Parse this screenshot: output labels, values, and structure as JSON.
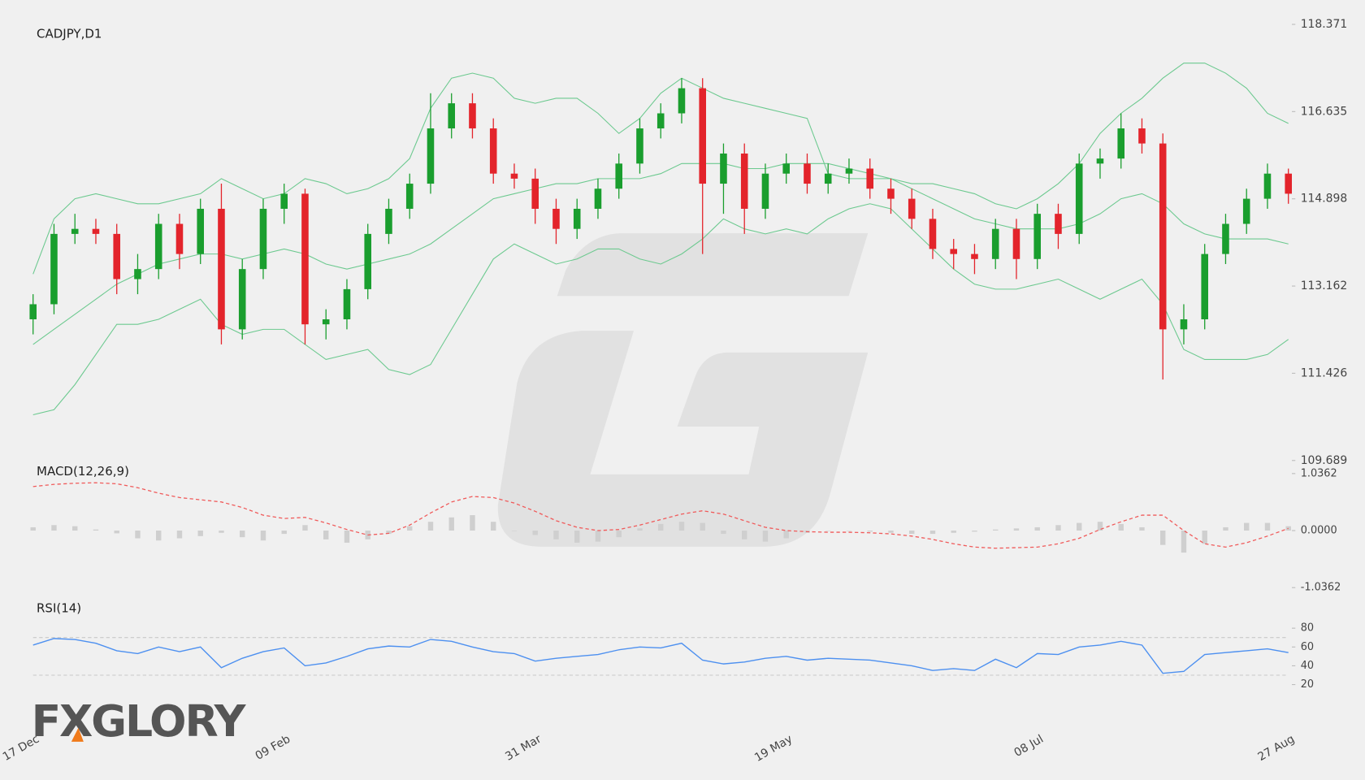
{
  "logo": "FXGLORY",
  "chart_data": [
    {
      "type": "candlestick",
      "title": "CADJPY,D1",
      "categories": [
        "17 Dec",
        null,
        null,
        null,
        null,
        null,
        null,
        null,
        null,
        null,
        null,
        null,
        "09 Feb",
        null,
        null,
        null,
        null,
        null,
        null,
        null,
        null,
        null,
        null,
        null,
        "31 Mar",
        null,
        null,
        null,
        null,
        null,
        null,
        null,
        null,
        null,
        null,
        null,
        "19 May",
        null,
        null,
        null,
        null,
        null,
        null,
        null,
        null,
        null,
        null,
        null,
        "08 Jul",
        null,
        null,
        null,
        null,
        null,
        null,
        null,
        null,
        null,
        null,
        null,
        "27 Aug"
      ],
      "open": [
        112.5,
        112.8,
        114.2,
        114.3,
        114.2,
        113.3,
        113.5,
        114.4,
        113.8,
        114.7,
        112.3,
        113.5,
        114.7,
        115.0,
        112.4,
        112.5,
        113.1,
        114.2,
        114.7,
        115.2,
        116.3,
        116.8,
        116.3,
        115.4,
        115.3,
        114.7,
        114.3,
        114.7,
        115.1,
        115.6,
        116.3,
        116.6,
        117.1,
        115.2,
        115.8,
        114.7,
        115.4,
        115.6,
        115.2,
        115.4,
        115.5,
        115.1,
        114.9,
        114.5,
        113.9,
        113.8,
        113.7,
        114.3,
        113.7,
        114.6,
        114.2,
        115.6,
        115.7,
        116.3,
        116.0,
        112.3,
        112.5,
        113.8,
        114.4,
        114.9,
        115.4
      ],
      "high": [
        113.0,
        114.4,
        114.6,
        114.5,
        114.4,
        113.8,
        114.6,
        114.6,
        114.9,
        115.2,
        113.7,
        114.9,
        115.2,
        115.1,
        112.7,
        113.3,
        114.4,
        114.9,
        115.4,
        117.0,
        117.0,
        117.0,
        116.5,
        115.6,
        115.5,
        114.9,
        114.9,
        115.3,
        115.8,
        116.5,
        116.8,
        117.3,
        117.3,
        116.0,
        116.0,
        115.6,
        115.8,
        115.8,
        115.6,
        115.7,
        115.7,
        115.3,
        115.1,
        114.7,
        114.1,
        114.0,
        114.5,
        114.5,
        114.8,
        114.8,
        115.8,
        115.9,
        116.6,
        116.5,
        116.2,
        112.8,
        114.0,
        114.6,
        115.1,
        115.6,
        115.5
      ],
      "low": [
        112.2,
        112.6,
        114.0,
        114.0,
        113.0,
        113.0,
        113.3,
        113.5,
        113.6,
        112.0,
        112.1,
        113.3,
        114.4,
        112.0,
        112.1,
        112.3,
        112.9,
        114.0,
        114.5,
        115.0,
        116.1,
        116.1,
        115.2,
        115.1,
        114.4,
        114.0,
        114.1,
        114.5,
        114.9,
        115.4,
        116.1,
        116.4,
        113.8,
        114.6,
        114.2,
        114.5,
        115.2,
        115.0,
        115.0,
        115.2,
        114.9,
        114.6,
        114.3,
        113.7,
        113.5,
        113.4,
        113.5,
        113.3,
        113.5,
        113.9,
        114.0,
        115.3,
        115.5,
        115.8,
        111.3,
        112.0,
        112.3,
        113.6,
        114.2,
        114.7,
        114.8
      ],
      "close": [
        112.8,
        114.2,
        114.3,
        114.2,
        113.3,
        113.5,
        114.4,
        113.8,
        114.7,
        112.3,
        113.5,
        114.7,
        115.0,
        112.4,
        112.5,
        113.1,
        114.2,
        114.7,
        115.2,
        116.3,
        116.8,
        116.3,
        115.4,
        115.3,
        114.7,
        114.3,
        114.7,
        115.1,
        115.6,
        116.3,
        116.6,
        117.1,
        115.2,
        115.8,
        114.7,
        115.4,
        115.6,
        115.2,
        115.4,
        115.5,
        115.1,
        114.9,
        114.5,
        113.9,
        113.8,
        113.7,
        114.3,
        113.7,
        114.6,
        114.2,
        115.6,
        115.7,
        116.3,
        116.0,
        112.3,
        112.5,
        113.8,
        114.4,
        114.9,
        115.4,
        115.0
      ],
      "up_color": "#1a9e2e",
      "down_color": "#e3242b",
      "overlays": [
        {
          "color": "#6cc98f",
          "values": [
            113.4,
            114.5,
            114.9,
            115.0,
            114.9,
            114.8,
            114.8,
            114.9,
            115.0,
            115.3,
            115.1,
            114.9,
            115.0,
            115.3,
            115.2,
            115.0,
            115.1,
            115.3,
            115.7,
            116.7,
            117.3,
            117.4,
            117.3,
            116.9,
            116.8,
            116.9,
            116.9,
            116.6,
            116.2,
            116.5,
            117.0,
            117.3,
            117.1,
            116.9,
            116.8,
            116.7,
            116.6,
            116.5,
            115.4,
            115.3,
            115.3,
            115.3,
            115.2,
            115.2,
            115.1,
            115.0,
            114.8,
            114.7,
            114.9,
            115.2,
            115.6,
            116.2,
            116.6,
            116.9,
            117.3,
            117.6,
            117.6,
            117.4,
            117.1,
            116.6,
            116.4
          ]
        },
        {
          "color": "#6cc98f",
          "values": [
            112.0,
            112.3,
            112.6,
            112.9,
            113.2,
            113.4,
            113.6,
            113.7,
            113.8,
            113.8,
            113.7,
            113.8,
            113.9,
            113.8,
            113.6,
            113.5,
            113.6,
            113.7,
            113.8,
            114.0,
            114.3,
            114.6,
            114.9,
            115.0,
            115.1,
            115.2,
            115.2,
            115.3,
            115.3,
            115.3,
            115.4,
            115.6,
            115.6,
            115.6,
            115.5,
            115.5,
            115.6,
            115.6,
            115.6,
            115.5,
            115.4,
            115.3,
            115.1,
            114.9,
            114.7,
            114.5,
            114.4,
            114.3,
            114.3,
            114.3,
            114.4,
            114.6,
            114.9,
            115.0,
            114.8,
            114.4,
            114.2,
            114.1,
            114.1,
            114.1,
            114.0
          ]
        },
        {
          "color": "#6cc98f",
          "values": [
            110.6,
            110.7,
            111.2,
            111.8,
            112.4,
            112.4,
            112.5,
            112.7,
            112.9,
            112.4,
            112.2,
            112.3,
            112.3,
            112.0,
            111.7,
            111.8,
            111.9,
            111.5,
            111.4,
            111.6,
            112.3,
            113.0,
            113.7,
            114.0,
            113.8,
            113.6,
            113.7,
            113.9,
            113.9,
            113.7,
            113.6,
            113.8,
            114.1,
            114.5,
            114.3,
            114.2,
            114.3,
            114.2,
            114.5,
            114.7,
            114.8,
            114.7,
            114.3,
            113.9,
            113.5,
            113.2,
            113.1,
            113.1,
            113.2,
            113.3,
            113.1,
            112.9,
            113.1,
            113.3,
            112.8,
            111.9,
            111.7,
            111.7,
            111.7,
            111.8,
            112.1
          ]
        }
      ],
      "ylim": [
        109.689,
        118.371
      ],
      "yticks": [
        109.689,
        111.426,
        113.162,
        114.898,
        116.635,
        118.371
      ]
    },
    {
      "type": "macd",
      "title": "MACD(12,26,9)",
      "histogram": {
        "color": "#cfcfcf",
        "values": [
          0.06,
          0.1,
          0.08,
          0.02,
          -0.05,
          -0.14,
          -0.18,
          -0.14,
          -0.1,
          -0.04,
          -0.12,
          -0.18,
          -0.06,
          0.1,
          -0.16,
          -0.22,
          -0.16,
          -0.06,
          0.08,
          0.16,
          0.24,
          0.28,
          0.16,
          0.0,
          -0.08,
          -0.16,
          -0.22,
          -0.2,
          -0.12,
          0.04,
          0.12,
          0.16,
          0.14,
          -0.06,
          -0.16,
          -0.2,
          -0.14,
          -0.04,
          0.0,
          0.0,
          -0.02,
          -0.04,
          -0.06,
          -0.06,
          -0.04,
          -0.02,
          0.02,
          0.04,
          0.06,
          0.1,
          0.14,
          0.16,
          0.12,
          0.06,
          -0.26,
          -0.4,
          -0.24,
          0.06,
          0.14,
          0.14,
          0.08
        ]
      },
      "signal": {
        "color": "#f05a5a",
        "values": [
          0.8,
          0.84,
          0.86,
          0.87,
          0.85,
          0.78,
          0.68,
          0.6,
          0.56,
          0.52,
          0.42,
          0.28,
          0.22,
          0.24,
          0.14,
          0.02,
          -0.08,
          -0.05,
          0.1,
          0.32,
          0.52,
          0.62,
          0.6,
          0.5,
          0.35,
          0.18,
          0.06,
          0.0,
          0.02,
          0.1,
          0.2,
          0.3,
          0.36,
          0.3,
          0.18,
          0.06,
          0.0,
          -0.02,
          -0.03,
          -0.03,
          -0.04,
          -0.06,
          -0.1,
          -0.16,
          -0.24,
          -0.3,
          -0.32,
          -0.31,
          -0.3,
          -0.24,
          -0.14,
          0.02,
          0.16,
          0.28,
          0.28,
          0.0,
          -0.24,
          -0.3,
          -0.22,
          -0.1,
          0.04
        ]
      },
      "ylim": [
        -1.0362,
        1.0362
      ],
      "yticks": [
        -1.0362,
        {
          "value": 0,
          "label": "0.0000"
        },
        1.0362
      ]
    },
    {
      "type": "rsi",
      "title": "RSI(14)",
      "color": "#4d90f0",
      "values": [
        62,
        69,
        68,
        64,
        56,
        53,
        60,
        55,
        60,
        38,
        48,
        55,
        59,
        40,
        43,
        50,
        58,
        61,
        60,
        68,
        66,
        60,
        55,
        53,
        45,
        48,
        50,
        52,
        57,
        60,
        59,
        64,
        46,
        42,
        44,
        48,
        50,
        46,
        48,
        47,
        46,
        43,
        40,
        35,
        37,
        35,
        47,
        38,
        53,
        52,
        60,
        62,
        66,
        62,
        32,
        34,
        52,
        54,
        56,
        58,
        54
      ],
      "levels": [
        30,
        70
      ],
      "ylim": [
        0,
        100
      ],
      "yticks": [
        20,
        40,
        60,
        80
      ]
    }
  ]
}
